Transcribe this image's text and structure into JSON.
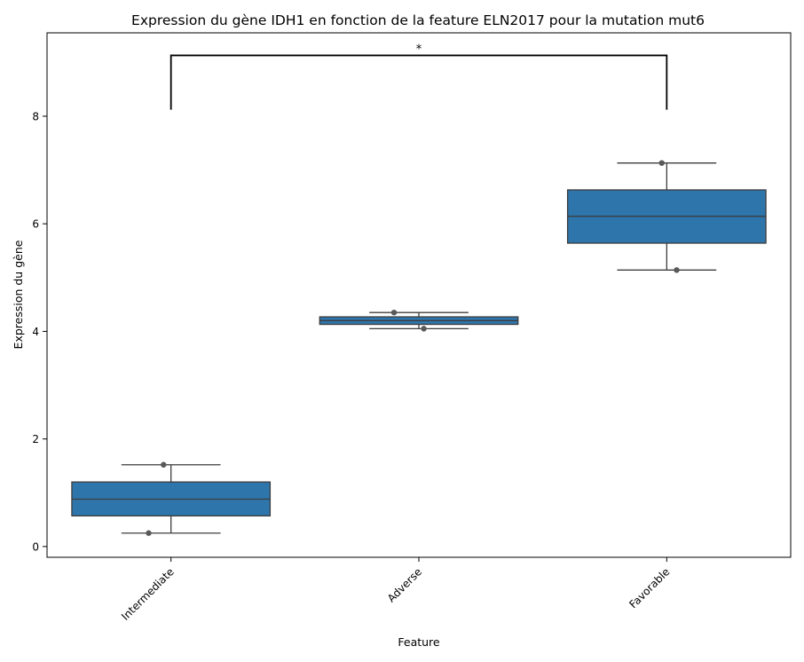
{
  "chart_data": {
    "type": "box",
    "title": "Expression du gène IDH1 en fonction de la feature ELN2017 pour la mutation mut6",
    "xlabel": "Feature",
    "ylabel": "Expression du gène",
    "categories": [
      "Intermediate",
      "Adverse",
      "Favorable"
    ],
    "ylim": [
      -0.2,
      9.55
    ],
    "yticks": [
      0,
      2,
      4,
      6,
      8
    ],
    "ytick_labels": [
      "0",
      "2",
      "4",
      "6",
      "8"
    ],
    "grid": false,
    "box_color": "#2e75ab",
    "boxes": [
      {
        "category": "Intermediate",
        "q1": 0.57,
        "median": 0.88,
        "q3": 1.2,
        "whisker_low": 0.25,
        "whisker_high": 1.52
      },
      {
        "category": "Adverse",
        "q1": 4.13,
        "median": 4.2,
        "q3": 4.27,
        "whisker_low": 4.05,
        "whisker_high": 4.35
      },
      {
        "category": "Favorable",
        "q1": 5.64,
        "median": 6.14,
        "q3": 6.63,
        "whisker_low": 5.14,
        "whisker_high": 7.13
      }
    ],
    "points": [
      {
        "category": "Intermediate",
        "value": 1.52,
        "jitter": -0.03
      },
      {
        "category": "Intermediate",
        "value": 0.25,
        "jitter": -0.09
      },
      {
        "category": "Adverse",
        "value": 4.35,
        "jitter": -0.1
      },
      {
        "category": "Adverse",
        "value": 4.05,
        "jitter": 0.02
      },
      {
        "category": "Favorable",
        "value": 7.13,
        "jitter": -0.02
      },
      {
        "category": "Favorable",
        "value": 5.14,
        "jitter": 0.04
      }
    ],
    "annotations": [
      {
        "from": "Intermediate",
        "to": "Favorable",
        "y_low": 8.12,
        "y_high": 9.13,
        "text": "*"
      }
    ]
  }
}
